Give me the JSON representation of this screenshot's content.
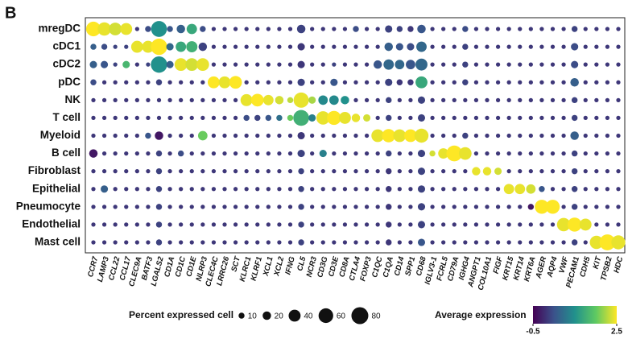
{
  "chart_data": {
    "type": "dotplot",
    "panel_label": "B",
    "rows": [
      "mregDC",
      "cDC1",
      "cDC2",
      "pDC",
      "NK",
      "T cell",
      "Myeloid",
      "B cell",
      "Fibroblast",
      "Epithelial",
      "Pneumocyte",
      "Endothelial",
      "Mast cell"
    ],
    "columns": [
      "CCR7",
      "LAMP3",
      "CCL22",
      "CCL17",
      "CLEC9A",
      "BATF3",
      "LGALS2",
      "CD1A",
      "CD1C",
      "CD1E",
      "NLRP3",
      "CLEC4C",
      "LRRC26",
      "SCT",
      "KLRC1",
      "KLRF1",
      "XCL1",
      "XCL2",
      "IFNG",
      "CL5",
      "NCR3",
      "CD3G",
      "CD3E",
      "CD8A",
      "CTLA4",
      "FOXP3",
      "C1QC",
      "C1QA",
      "CD14",
      "SPP1",
      "CD68",
      "IGLV3-1",
      "FCRL5",
      "CD79A",
      "IGHG4",
      "ANGPT1",
      "COL10A1",
      "FIGF",
      "KRT15",
      "KRT14",
      "KRT6A",
      "AGER",
      "AQP4",
      "VWF",
      "PECAM1",
      "CDH5",
      "KIT",
      "TPSB2",
      "HDC"
    ],
    "percent": [
      [
        60,
        50,
        45,
        40,
        5,
        10,
        70,
        10,
        20,
        30,
        10,
        5,
        5,
        5,
        5,
        5,
        5,
        5,
        5,
        20,
        5,
        5,
        5,
        5,
        10,
        5,
        5,
        15,
        10,
        10,
        20,
        5,
        5,
        5,
        10,
        5,
        5,
        5,
        5,
        5,
        5,
        5,
        5,
        5,
        10,
        5,
        5,
        5,
        5
      ],
      [
        10,
        10,
        5,
        5,
        40,
        40,
        75,
        15,
        30,
        35,
        20,
        5,
        5,
        5,
        5,
        5,
        5,
        5,
        5,
        15,
        5,
        5,
        5,
        5,
        5,
        5,
        5,
        20,
        15,
        15,
        30,
        5,
        5,
        5,
        10,
        5,
        5,
        5,
        5,
        5,
        5,
        5,
        5,
        5,
        15,
        5,
        5,
        5,
        5
      ],
      [
        15,
        15,
        5,
        15,
        5,
        5,
        75,
        15,
        45,
        45,
        45,
        5,
        5,
        5,
        5,
        5,
        5,
        5,
        5,
        15,
        5,
        5,
        5,
        5,
        5,
        5,
        20,
        30,
        25,
        25,
        40,
        5,
        5,
        5,
        10,
        5,
        5,
        5,
        5,
        5,
        5,
        5,
        5,
        5,
        15,
        5,
        5,
        5,
        5
      ],
      [
        10,
        5,
        5,
        5,
        5,
        5,
        10,
        5,
        5,
        5,
        5,
        40,
        40,
        45,
        5,
        5,
        5,
        5,
        5,
        15,
        5,
        5,
        15,
        5,
        5,
        5,
        5,
        15,
        10,
        10,
        40,
        5,
        5,
        5,
        10,
        5,
        5,
        5,
        5,
        5,
        5,
        5,
        5,
        5,
        20,
        5,
        5,
        5,
        5
      ],
      [
        5,
        5,
        5,
        5,
        5,
        5,
        5,
        5,
        5,
        5,
        5,
        5,
        5,
        5,
        40,
        45,
        30,
        20,
        10,
        65,
        15,
        25,
        25,
        20,
        5,
        5,
        5,
        10,
        5,
        5,
        15,
        5,
        5,
        5,
        5,
        5,
        5,
        5,
        5,
        5,
        5,
        5,
        5,
        5,
        10,
        5,
        5,
        5,
        5
      ],
      [
        5,
        5,
        5,
        5,
        5,
        5,
        5,
        5,
        5,
        5,
        5,
        5,
        5,
        5,
        10,
        10,
        10,
        10,
        10,
        70,
        15,
        50,
        55,
        40,
        20,
        15,
        5,
        10,
        5,
        5,
        15,
        5,
        5,
        5,
        5,
        5,
        5,
        5,
        5,
        5,
        5,
        5,
        5,
        5,
        10,
        5,
        5,
        5,
        5
      ],
      [
        5,
        5,
        5,
        5,
        5,
        10,
        20,
        5,
        5,
        5,
        25,
        5,
        5,
        5,
        5,
        5,
        5,
        5,
        5,
        15,
        5,
        5,
        5,
        5,
        5,
        5,
        45,
        50,
        45,
        45,
        55,
        5,
        5,
        5,
        10,
        5,
        5,
        5,
        5,
        5,
        5,
        5,
        5,
        5,
        20,
        5,
        5,
        5,
        5
      ],
      [
        20,
        5,
        5,
        5,
        5,
        5,
        10,
        5,
        10,
        5,
        5,
        5,
        5,
        5,
        5,
        5,
        5,
        5,
        5,
        15,
        5,
        15,
        5,
        5,
        5,
        5,
        5,
        10,
        5,
        5,
        15,
        10,
        30,
        70,
        45,
        5,
        5,
        5,
        5,
        5,
        5,
        5,
        5,
        5,
        10,
        5,
        5,
        5,
        5
      ],
      [
        5,
        5,
        5,
        5,
        5,
        5,
        10,
        5,
        5,
        5,
        5,
        5,
        5,
        5,
        5,
        5,
        5,
        5,
        5,
        10,
        5,
        5,
        5,
        5,
        5,
        5,
        5,
        10,
        5,
        5,
        15,
        5,
        5,
        5,
        5,
        20,
        20,
        15,
        5,
        5,
        5,
        5,
        5,
        5,
        10,
        5,
        5,
        5,
        5
      ],
      [
        5,
        15,
        5,
        5,
        5,
        5,
        10,
        5,
        5,
        5,
        5,
        5,
        5,
        5,
        5,
        5,
        5,
        5,
        5,
        10,
        5,
        5,
        5,
        5,
        5,
        5,
        5,
        10,
        5,
        5,
        15,
        5,
        5,
        5,
        5,
        5,
        5,
        5,
        30,
        30,
        25,
        10,
        5,
        5,
        10,
        5,
        5,
        5,
        5
      ],
      [
        5,
        5,
        5,
        5,
        5,
        5,
        10,
        5,
        5,
        5,
        5,
        5,
        5,
        5,
        5,
        5,
        5,
        5,
        5,
        10,
        5,
        5,
        5,
        5,
        5,
        5,
        5,
        10,
        5,
        5,
        15,
        5,
        5,
        5,
        5,
        5,
        5,
        5,
        5,
        5,
        10,
        55,
        55,
        5,
        10,
        5,
        5,
        5,
        5
      ],
      [
        5,
        5,
        5,
        5,
        5,
        5,
        10,
        5,
        5,
        5,
        5,
        5,
        5,
        5,
        5,
        5,
        5,
        5,
        5,
        10,
        5,
        5,
        5,
        5,
        5,
        5,
        5,
        10,
        5,
        5,
        15,
        5,
        5,
        5,
        5,
        5,
        5,
        5,
        5,
        5,
        5,
        5,
        5,
        50,
        55,
        40,
        5,
        5,
        5
      ],
      [
        5,
        5,
        5,
        5,
        5,
        5,
        10,
        5,
        5,
        5,
        5,
        5,
        5,
        5,
        5,
        5,
        5,
        5,
        5,
        10,
        5,
        5,
        5,
        5,
        5,
        5,
        5,
        10,
        5,
        5,
        15,
        5,
        5,
        5,
        5,
        5,
        5,
        5,
        5,
        5,
        5,
        5,
        5,
        5,
        10,
        5,
        50,
        70,
        55
      ]
    ],
    "expression": [
      [
        2.5,
        2.4,
        2.3,
        2.4,
        0,
        0.2,
        1.0,
        0.3,
        0.4,
        1.3,
        0.2,
        0,
        0,
        0,
        0,
        0,
        0,
        0,
        0,
        0.1,
        0,
        0,
        0,
        0,
        0.2,
        0,
        0,
        0.1,
        0.1,
        0,
        0.3,
        0,
        0,
        0,
        0.2,
        0,
        0,
        0,
        0,
        0,
        0,
        0,
        0,
        0,
        0.1,
        0,
        0,
        0,
        0
      ],
      [
        0.4,
        0.2,
        0.1,
        0.1,
        2.4,
        2.4,
        2.5,
        0.5,
        1.3,
        1.4,
        0.1,
        0,
        0,
        0,
        0,
        0,
        0,
        0,
        0,
        0,
        0,
        0,
        0,
        0,
        0,
        0,
        0,
        0.4,
        0.3,
        0.2,
        0.5,
        0,
        0,
        0,
        0.1,
        0,
        0,
        0,
        0,
        0,
        0,
        0,
        0,
        0,
        0.2,
        0,
        0,
        0,
        0
      ],
      [
        0.4,
        0.3,
        0.1,
        1.5,
        0,
        0.1,
        1.0,
        0.4,
        2.4,
        2.3,
        2.4,
        0,
        0,
        0,
        0,
        0,
        0,
        0,
        0,
        0,
        0,
        0,
        0.1,
        0,
        0,
        0,
        0.3,
        0.5,
        0.5,
        0.3,
        0.5,
        0,
        0,
        0,
        0.1,
        0,
        0,
        0,
        0,
        0,
        0,
        0,
        0,
        0,
        0.2,
        0,
        0,
        0,
        0
      ],
      [
        0.2,
        0,
        0,
        0,
        0,
        0,
        0.1,
        0,
        0,
        0,
        0,
        2.5,
        2.4,
        2.5,
        0,
        0,
        0,
        0,
        0,
        0.1,
        0,
        0,
        0.3,
        0,
        0,
        0,
        0,
        0.1,
        0,
        0,
        1.3,
        0,
        0,
        0,
        0.1,
        0,
        0,
        0,
        0,
        0,
        0,
        0,
        0,
        0,
        0.4,
        0,
        0,
        0,
        0
      ],
      [
        0,
        0,
        0,
        0,
        0,
        0,
        0,
        0,
        0,
        0,
        0,
        0,
        0,
        0,
        2.4,
        2.5,
        2.4,
        2.3,
        2.2,
        2.4,
        2.1,
        0.9,
        0.9,
        1.0,
        0,
        0,
        0,
        0.1,
        0,
        0,
        0.1,
        0,
        0,
        0,
        0,
        0,
        0,
        0,
        0,
        0,
        0,
        0,
        0,
        0,
        0.1,
        0,
        0,
        0,
        0
      ],
      [
        0,
        0,
        0,
        0,
        0,
        0,
        0,
        0,
        0,
        0,
        0,
        0,
        0,
        0,
        0.2,
        0.1,
        0.3,
        0.6,
        1.8,
        1.4,
        0.8,
        2.4,
        2.5,
        2.4,
        2.4,
        2.3,
        0,
        0.1,
        0,
        0,
        0.1,
        0,
        0,
        0,
        0,
        0,
        0,
        0,
        0,
        0,
        0,
        0,
        0,
        0,
        0.1,
        0,
        0,
        0,
        0
      ],
      [
        0,
        0,
        0,
        0,
        0,
        0.3,
        -0.3,
        0,
        0,
        0,
        1.8,
        0,
        0,
        0,
        0,
        0,
        0,
        0,
        0,
        0,
        0,
        0,
        0,
        0,
        0,
        0,
        2.4,
        2.5,
        2.4,
        2.5,
        2.4,
        0,
        0,
        0,
        0.1,
        0,
        0,
        0,
        0,
        0,
        0,
        0,
        0,
        0,
        0.4,
        0,
        0,
        0,
        0
      ],
      [
        -0.3,
        0,
        0,
        0,
        0,
        0,
        0.1,
        0,
        0.2,
        0,
        0,
        0,
        0,
        0,
        0,
        0,
        0,
        0,
        0,
        0.1,
        0,
        0.8,
        0,
        0,
        0,
        0,
        0,
        0.1,
        0,
        0,
        0.1,
        2.3,
        2.4,
        2.5,
        2.4,
        0,
        0,
        0,
        0,
        0,
        0,
        0,
        0,
        0,
        0.1,
        0,
        0,
        0,
        0
      ],
      [
        0,
        0,
        0,
        0,
        0,
        0,
        0.1,
        0,
        0,
        0,
        0,
        0,
        0,
        0,
        0,
        0,
        0,
        0,
        0,
        0.1,
        0,
        0,
        0,
        0,
        0,
        0,
        0,
        0,
        0,
        0,
        0.1,
        0,
        0,
        0,
        0,
        2.4,
        2.4,
        2.3,
        0,
        0,
        0,
        0,
        0,
        0,
        0.1,
        0,
        0,
        0,
        0
      ],
      [
        0,
        0.4,
        0,
        0,
        0,
        0,
        0.1,
        0,
        0,
        0,
        0,
        0,
        0,
        0,
        0,
        0,
        0,
        0,
        0,
        0.1,
        0,
        0,
        0,
        0,
        0,
        0,
        0,
        0,
        0,
        0,
        0.1,
        0,
        0,
        0,
        0,
        0,
        0,
        0,
        2.4,
        2.4,
        2.3,
        0.3,
        0,
        0,
        0.1,
        0,
        0,
        0,
        0
      ],
      [
        0,
        0,
        0,
        0,
        0,
        0,
        0.1,
        0,
        0,
        0,
        0,
        0,
        0,
        0,
        0,
        0,
        0,
        0,
        0,
        0.1,
        0,
        0,
        0,
        0,
        0,
        0,
        0,
        0,
        0,
        0,
        0.1,
        0,
        0,
        0,
        0,
        0,
        0,
        0,
        0,
        0,
        -0.3,
        2.5,
        2.5,
        0,
        0.1,
        0,
        0,
        0,
        0
      ],
      [
        0,
        0,
        0,
        0,
        0,
        0,
        0.1,
        0,
        0,
        0,
        0,
        0,
        0,
        0,
        0,
        0,
        0,
        0,
        0,
        0.1,
        0,
        0,
        0,
        0,
        0,
        0,
        0,
        0,
        0,
        0,
        0.1,
        0,
        0,
        0,
        0,
        0,
        0,
        0,
        0,
        0,
        0,
        0,
        0,
        2.4,
        2.5,
        2.4,
        0,
        0,
        0
      ],
      [
        0,
        0,
        0,
        0,
        0,
        0,
        0.1,
        0,
        0,
        0,
        0,
        0,
        0,
        0,
        0,
        0,
        0,
        0,
        0,
        0.1,
        0,
        0,
        0,
        0,
        0,
        0,
        0,
        0,
        0,
        0,
        0.3,
        0,
        0,
        0,
        0,
        0,
        0,
        0,
        0,
        0,
        0,
        0,
        0,
        0,
        0.1,
        0,
        2.4,
        2.5,
        2.4
      ]
    ],
    "size_legend": {
      "title": "Percent expressed cell",
      "values": [
        10,
        20,
        40,
        60,
        80
      ]
    },
    "color_legend": {
      "title": "Average expression",
      "clim": [
        -0.5,
        2.5
      ],
      "ticks": [
        -0.5,
        2.5
      ],
      "colormap": [
        "#440154",
        "#3b528b",
        "#21918c",
        "#5ec962",
        "#fde725"
      ]
    }
  }
}
